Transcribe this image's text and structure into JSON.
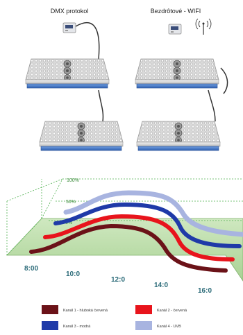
{
  "top": {
    "left_title": "DMX protokol",
    "right_title": "Bezdrôtové - WIFI"
  },
  "chart_data": {
    "type": "line",
    "x_ticks": [
      "8:00",
      "10:0",
      "12:0",
      "14:0",
      "16:0"
    ],
    "y_ticks": [
      "0%",
      "50%",
      "100%"
    ],
    "grid": true,
    "legend_position": "bottom",
    "series": [
      {
        "name": "Kanál 1 - hluboká červená",
        "color": "#6b1218",
        "peak": 0.5
      },
      {
        "name": "Kanál 2 - červená",
        "color": "#e8141c",
        "peak": 0.62
      },
      {
        "name": "Kanál 3 - modrá",
        "color": "#1f3aa8",
        "peak": 0.75
      },
      {
        "name": "Kanál 4 - UVB",
        "color": "#a8b4e0",
        "peak": 0.9
      }
    ]
  }
}
